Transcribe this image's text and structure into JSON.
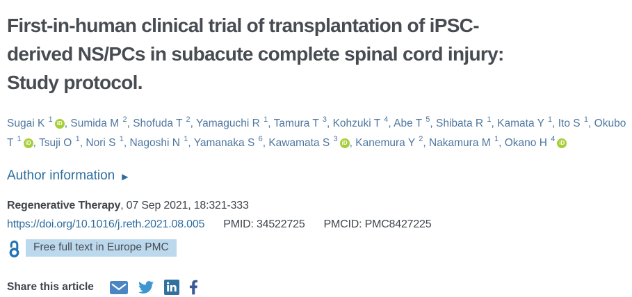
{
  "article": {
    "title": "First-in-human clinical trial of transplantation of iPSC-\nderived NS/PCs in subacute complete spinal cord injury:\nStudy protocol.",
    "authors": [
      {
        "name": "Sugai K",
        "sup": "1",
        "orcid": true
      },
      {
        "name": "Sumida M",
        "sup": "2",
        "orcid": false
      },
      {
        "name": "Shofuda T",
        "sup": "2",
        "orcid": false
      },
      {
        "name": "Yamaguchi R",
        "sup": "1",
        "orcid": false
      },
      {
        "name": "Tamura T",
        "sup": "3",
        "orcid": false
      },
      {
        "name": "Kohzuki T",
        "sup": "4",
        "orcid": false
      },
      {
        "name": "Abe T",
        "sup": "5",
        "orcid": false
      },
      {
        "name": "Shibata R",
        "sup": "1",
        "orcid": false
      },
      {
        "name": "Kamata Y",
        "sup": "1",
        "orcid": false
      },
      {
        "name": "Ito S",
        "sup": "1",
        "orcid": false
      },
      {
        "name": "Okubo T",
        "sup": "1",
        "orcid": true
      },
      {
        "name": "Tsuji O",
        "sup": "1",
        "orcid": false
      },
      {
        "name": "Nori S",
        "sup": "1",
        "orcid": false
      },
      {
        "name": "Nagoshi N",
        "sup": "1",
        "orcid": false
      },
      {
        "name": "Yamanaka S",
        "sup": "6",
        "orcid": false
      },
      {
        "name": "Kawamata S",
        "sup": "3",
        "orcid": true
      },
      {
        "name": "Kanemura Y",
        "sup": "2",
        "orcid": false
      },
      {
        "name": "Nakamura M",
        "sup": "1",
        "orcid": false
      },
      {
        "name": "Okano H",
        "sup": "4",
        "orcid": true
      }
    ],
    "author_separator": ", ",
    "orcid_badge_text": "iD",
    "author_information": {
      "label": "Author information",
      "arrow_glyph": "▶"
    },
    "citation": {
      "journal": "Regenerative Therapy",
      "rest": ", 07 Sep 2021, 18:321-333"
    },
    "identifiers": {
      "doi_link": "https://doi.org/10.1016/j.reth.2021.08.005",
      "pmid": "PMID: 34522725",
      "pmcid": "PMCID: PMC8427225"
    },
    "free_full_text_label": "Free full text in Europe PMC",
    "share": {
      "label": "Share this article",
      "icons": [
        "email",
        "twitter",
        "linkedin",
        "facebook"
      ]
    }
  },
  "colors": {
    "title_text": "#474c52",
    "author_link": "#4e76a0",
    "link_blue": "#2d6d9e",
    "body_text": "#3f454b",
    "orcid_green": "#a6ce39",
    "oa_lock_blue": "#2272b5",
    "highlight_bg": "#bcd8ec",
    "icon_email": "#4b86c4",
    "icon_twitter": "#3e96d1",
    "icon_linkedin": "#30719f",
    "icon_facebook": "#3b5a96"
  }
}
